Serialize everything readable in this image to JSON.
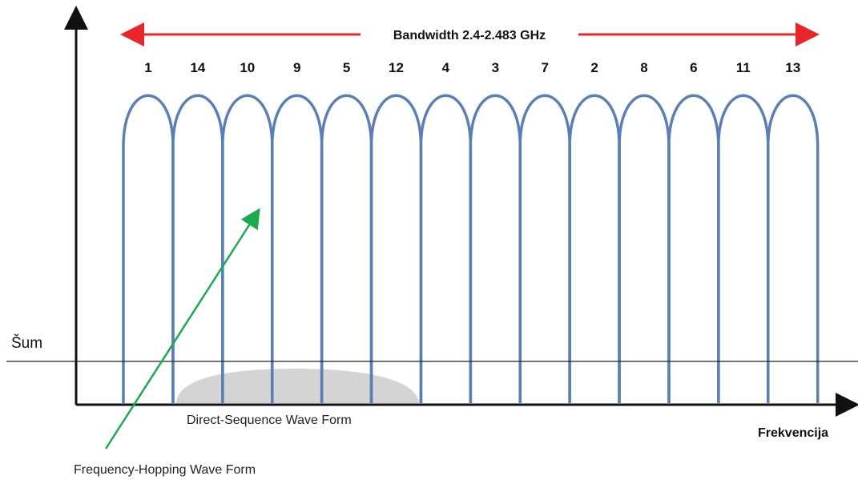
{
  "bandwidth": {
    "label": "Bandwidth 2.4-2.483 GHz",
    "arrow_color": "#e8262a"
  },
  "channels": [
    "1",
    "14",
    "10",
    "9",
    "5",
    "12",
    "4",
    "3",
    "7",
    "2",
    "8",
    "6",
    "11",
    "13"
  ],
  "noise_label": "Šum",
  "x_axis_label": "Frekvencija",
  "direct_sequence_label": "Direct-Sequence Wave Form",
  "frequency_hopping_label": "Frequency-Hopping Wave Form",
  "colors": {
    "lobe": "#5b7fb5",
    "axis": "#111111",
    "noise_line": "#222222",
    "ds_fill": "#d4d4d4",
    "fh_arrow": "#1daa4f"
  }
}
